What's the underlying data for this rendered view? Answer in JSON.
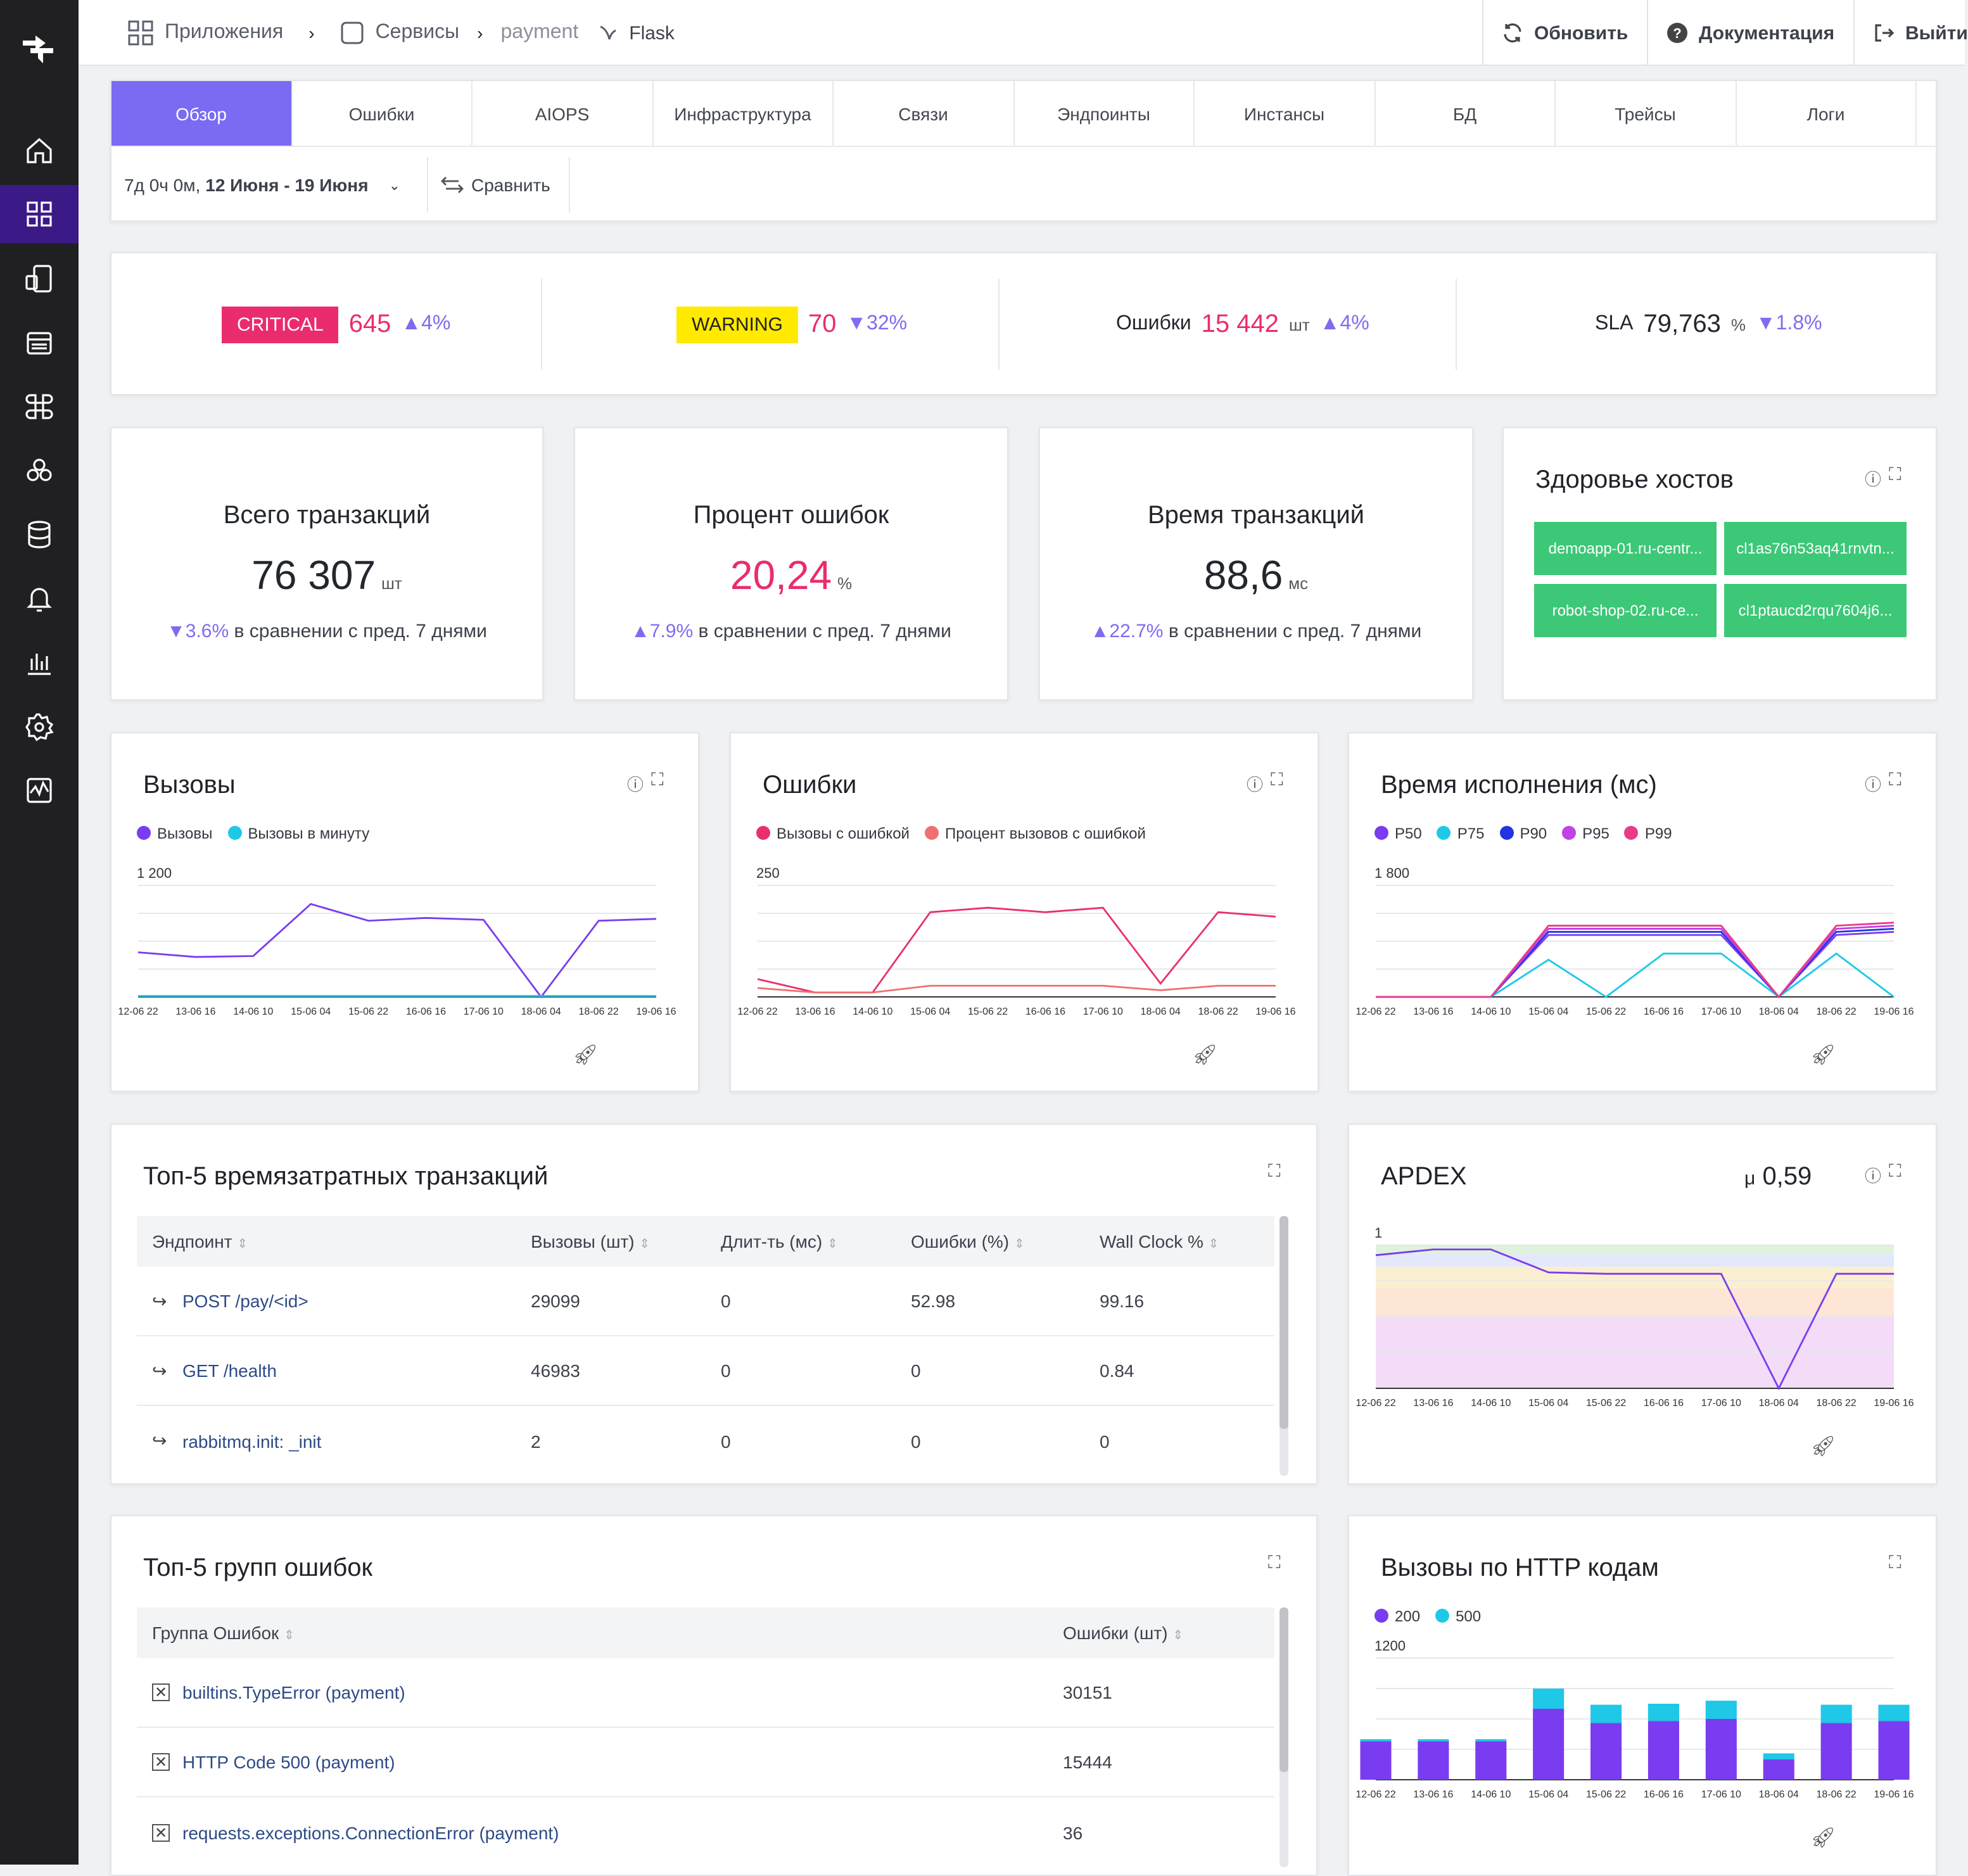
{
  "breadcrumb": {
    "apps": "Приложения",
    "services": "Сервисы",
    "service": "payment",
    "framework": "Flask"
  },
  "topbar": {
    "refresh": "Обновить",
    "docs": "Документация",
    "logout": "Выйти"
  },
  "tabs": [
    "Обзор",
    "Ошибки",
    "AIOPS",
    "Инфраструктура",
    "Связи",
    "Эндпоинты",
    "Инстансы",
    "БД",
    "Трейсы",
    "Логи"
  ],
  "range": {
    "duration": "7д 0ч 0м,",
    "dates": "12 Июня - 19 Июня",
    "compare": "Сравнить"
  },
  "status": {
    "critical": {
      "label": "CRITICAL",
      "value": "645",
      "change": "▲4%"
    },
    "warning": {
      "label": "WARNING",
      "value": "70",
      "change": "▼32%"
    },
    "errors": {
      "label": "Ошибки",
      "value": "15 442",
      "unit": "шт",
      "change": "▲4%"
    },
    "sla": {
      "label": "SLA",
      "value": "79,763",
      "unit": "%",
      "change": "▼1.8%"
    }
  },
  "kpis": {
    "total": {
      "title": "Всего транзакций",
      "value": "76 307",
      "unit": "шт",
      "change": "▼3.6%",
      "note": "в сравнении с пред. 7 днями"
    },
    "errpct": {
      "title": "Процент ошибок",
      "value": "20,24",
      "unit": "%",
      "change": "▲7.9%",
      "note": "в сравнении с пред. 7 днями"
    },
    "time": {
      "title": "Время транзакций",
      "value": "88,6",
      "unit": "мс",
      "change": "▲22.7%",
      "note": "в сравнении с пред. 7 днями"
    }
  },
  "hosts": {
    "title": "Здоровье хостов",
    "items": [
      "demoapp-01.ru-centr...",
      "cl1as76n53aq41rnvtn...",
      "robot-shop-02.ru-ce...",
      "cl1ptaucd2rqu7604j6..."
    ]
  },
  "x_ticks": [
    "12-06 22",
    "13-06 16",
    "14-06 10",
    "15-06 04",
    "15-06 22",
    "16-06 16",
    "17-06 10",
    "18-06 04",
    "18-06 22",
    "19-06 16"
  ],
  "calls_card": {
    "title": "Вызовы",
    "legend": [
      "Вызовы",
      "Вызовы в минуту"
    ],
    "ymax": "1 200"
  },
  "errors_card": {
    "title": "Ошибки",
    "legend": [
      "Вызовы с ошибкой",
      "Процент вызовов с ошибкой"
    ],
    "ymax": "250"
  },
  "latency_card": {
    "title": "Время исполнения (мс)",
    "legend": [
      "P50",
      "P75",
      "P90",
      "P95",
      "P99"
    ],
    "ymax": "1 800"
  },
  "apdex": {
    "title": "APDEX",
    "mu": "μ",
    "value": "0,59",
    "ymax": "1"
  },
  "http_card": {
    "title": "Вызовы по HTTP кодам",
    "legend": [
      "200",
      "500"
    ],
    "ymax": "1200"
  },
  "top_tx": {
    "title": "Топ-5 времязатратных транзакций",
    "columns": [
      "Эндпоинт",
      "Вызовы (шт)",
      "Длит-ть (мс)",
      "Ошибки (%)",
      "Wall Clock %"
    ],
    "rows": [
      [
        "POST /pay/<id>",
        "29099",
        "0",
        "52.98",
        "99.16"
      ],
      [
        "GET /health",
        "46983",
        "0",
        "0",
        "0.84"
      ],
      [
        "rabbitmq.init: _init",
        "2",
        "0",
        "0",
        "0"
      ]
    ]
  },
  "top_err": {
    "title": "Топ-5 групп ошибок",
    "columns": [
      "Группа Ошибок",
      "Ошибки (шт)"
    ],
    "rows": [
      [
        "builtins.TypeError (payment)",
        "30151"
      ],
      [
        "HTTP Code 500 (payment)",
        "15444"
      ],
      [
        "requests.exceptions.ConnectionError (payment)",
        "36"
      ]
    ]
  },
  "colors": {
    "accent": "#7a6bf2",
    "critical": "#ea2c6f",
    "warning": "#ffea00",
    "host_ok": "#3cc877",
    "sidebar": "#202022"
  },
  "chart_data": [
    {
      "type": "line",
      "title": "Вызовы",
      "ylim": [
        0,
        1200
      ],
      "x": [
        "12-06 22",
        "13-06 16",
        "14-06 10",
        "15-06 04",
        "15-06 22",
        "16-06 16",
        "17-06 10",
        "18-06 04",
        "18-06 22",
        "19-06 16"
      ],
      "series": [
        {
          "name": "Вызовы",
          "values": [
            480,
            430,
            440,
            1000,
            820,
            850,
            830,
            0,
            820,
            840
          ]
        },
        {
          "name": "Вызовы в минуту",
          "values": [
            10,
            10,
            10,
            10,
            10,
            10,
            10,
            10,
            10,
            10
          ]
        }
      ]
    },
    {
      "type": "line",
      "title": "Ошибки",
      "ylim": [
        0,
        250
      ],
      "x": [
        "12-06 22",
        "13-06 16",
        "14-06 10",
        "15-06 04",
        "15-06 22",
        "16-06 16",
        "17-06 10",
        "18-06 04",
        "18-06 22",
        "19-06 16"
      ],
      "series": [
        {
          "name": "Вызовы с ошибкой",
          "values": [
            40,
            10,
            10,
            190,
            200,
            190,
            200,
            30,
            190,
            180
          ]
        },
        {
          "name": "Процент вызовов с ошибкой",
          "values": [
            20,
            10,
            10,
            25,
            25,
            25,
            25,
            15,
            25,
            25
          ]
        }
      ]
    },
    {
      "type": "line",
      "title": "Время исполнения (мс)",
      "ylim": [
        0,
        1800
      ],
      "x": [
        "12-06 22",
        "13-06 16",
        "14-06 10",
        "15-06 04",
        "15-06 22",
        "16-06 16",
        "17-06 10",
        "18-06 04",
        "18-06 22",
        "19-06 16"
      ],
      "series": [
        {
          "name": "P50",
          "values": [
            0,
            0,
            0,
            1000,
            1000,
            1000,
            1000,
            0,
            1000,
            1050
          ]
        },
        {
          "name": "P75",
          "values": [
            0,
            0,
            0,
            600,
            0,
            700,
            700,
            0,
            700,
            0
          ]
        },
        {
          "name": "P90",
          "values": [
            0,
            0,
            0,
            1050,
            1050,
            1050,
            1050,
            0,
            1050,
            1100
          ]
        },
        {
          "name": "P95",
          "values": [
            0,
            0,
            0,
            1100,
            1100,
            1100,
            1100,
            0,
            1100,
            1150
          ]
        },
        {
          "name": "P99",
          "values": [
            0,
            0,
            0,
            1150,
            1150,
            1150,
            1150,
            0,
            1150,
            1200
          ]
        }
      ]
    },
    {
      "type": "line",
      "title": "APDEX",
      "ylim": [
        0,
        1
      ],
      "x": [
        "12-06 22",
        "13-06 16",
        "14-06 10",
        "15-06 04",
        "15-06 22",
        "16-06 16",
        "17-06 10",
        "18-06 04",
        "18-06 22",
        "19-06 16"
      ],
      "series": [
        {
          "name": "APDEX",
          "values": [
            0.93,
            0.97,
            0.97,
            0.81,
            0.8,
            0.8,
            0.8,
            0,
            0.8,
            0.8
          ]
        }
      ]
    },
    {
      "type": "bar",
      "title": "Вызовы по HTTP кодам",
      "ylim": [
        0,
        1200
      ],
      "categories": [
        "12-06 22",
        "13-06 16",
        "14-06 10",
        "15-06 04",
        "15-06 22",
        "16-06 16",
        "17-06 10",
        "18-06 04",
        "18-06 22",
        "19-06 16"
      ],
      "series": [
        {
          "name": "200",
          "values": [
            380,
            380,
            380,
            700,
            560,
            580,
            600,
            200,
            560,
            580
          ]
        },
        {
          "name": "500",
          "values": [
            20,
            20,
            20,
            200,
            180,
            170,
            180,
            60,
            180,
            160
          ]
        }
      ]
    }
  ]
}
